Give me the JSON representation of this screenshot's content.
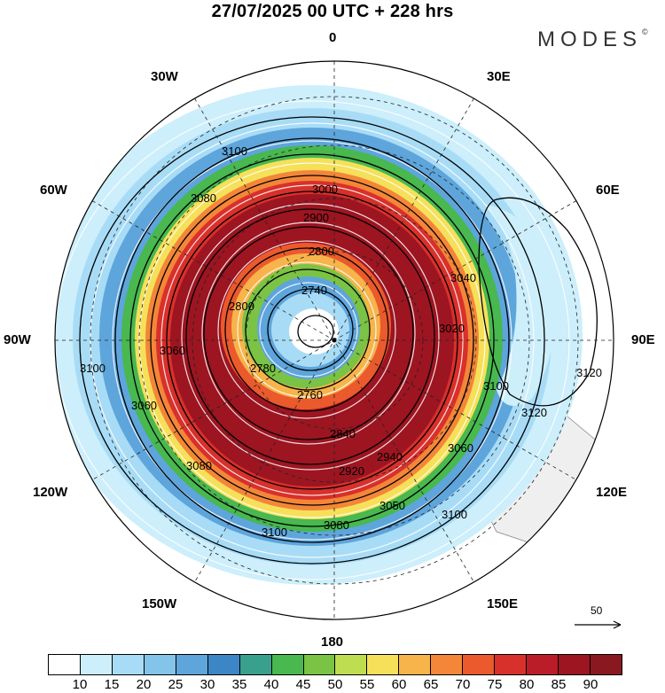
{
  "title": "27/07/2025  00 UTC  + 228 hrs",
  "brand": "MODES",
  "longitude_labels": {
    "top": "0",
    "bottom": "180",
    "left": "90W",
    "right": "90E",
    "nw": "30W",
    "wnw": "60W",
    "wsw": "120W",
    "ssw": "150W",
    "ne": "30E",
    "ene": "60E",
    "ese": "120E",
    "sse": "150E"
  },
  "contour_labels": [
    "3100",
    "3080",
    "3060",
    "3000",
    "2900",
    "2800",
    "2740",
    "2780",
    "2760",
    "2840",
    "2920",
    "2940",
    "3020",
    "3050",
    "3120",
    "3040"
  ],
  "scale_vector": "50",
  "colorbar": {
    "colors": [
      "#ffffff",
      "#cdeefb",
      "#a8dcf6",
      "#84c3ea",
      "#5ea5dc",
      "#3d86c6",
      "#3aa08e",
      "#48b84f",
      "#7ac345",
      "#bfdd50",
      "#f6e05a",
      "#f6b44b",
      "#f38638",
      "#ea5a2c",
      "#d8302b",
      "#bb1d28",
      "#9c1521",
      "#8a1820"
    ],
    "tick_labels": [
      "10",
      "15",
      "20",
      "25",
      "30",
      "35",
      "40",
      "45",
      "50",
      "55",
      "60",
      "65",
      "70",
      "75",
      "80",
      "85",
      "90"
    ]
  }
}
